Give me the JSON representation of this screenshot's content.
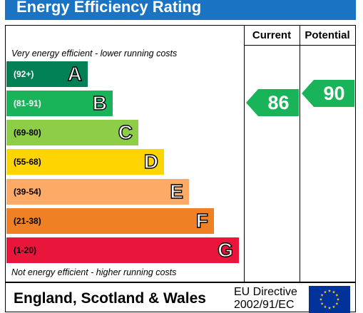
{
  "title": "Energy Efficiency Rating",
  "columns": {
    "current": "Current",
    "potential": "Potential"
  },
  "notes": {
    "top": "Very energy efficient - lower running costs",
    "bottom": "Not energy efficient - higher running costs"
  },
  "bands": [
    {
      "range": "(92+)",
      "letter": "A",
      "color": "#008054",
      "text_color": "#ffffff"
    },
    {
      "range": "(81-91)",
      "letter": "B",
      "color": "#19b459",
      "text_color": "#ffffff"
    },
    {
      "range": "(69-80)",
      "letter": "C",
      "color": "#8dce46",
      "text_color": "#000000"
    },
    {
      "range": "(55-68)",
      "letter": "D",
      "color": "#ffd500",
      "text_color": "#000000"
    },
    {
      "range": "(39-54)",
      "letter": "E",
      "color": "#fcaa65",
      "text_color": "#000000"
    },
    {
      "range": "(21-38)",
      "letter": "F",
      "color": "#ef8023",
      "text_color": "#000000"
    },
    {
      "range": "(1-20)",
      "letter": "G",
      "color": "#e9153b",
      "text_color": "#000000"
    }
  ],
  "ratings": {
    "current": {
      "value": "86",
      "color": "#19b459"
    },
    "potential": {
      "value": "90",
      "color": "#19b459"
    }
  },
  "footer": {
    "region": "England, Scotland & Wales",
    "directive_line1": "EU Directive",
    "directive_line2": "2002/91/EC"
  },
  "flag": {
    "field_color": "#003399",
    "star_color": "#ffcc00"
  }
}
